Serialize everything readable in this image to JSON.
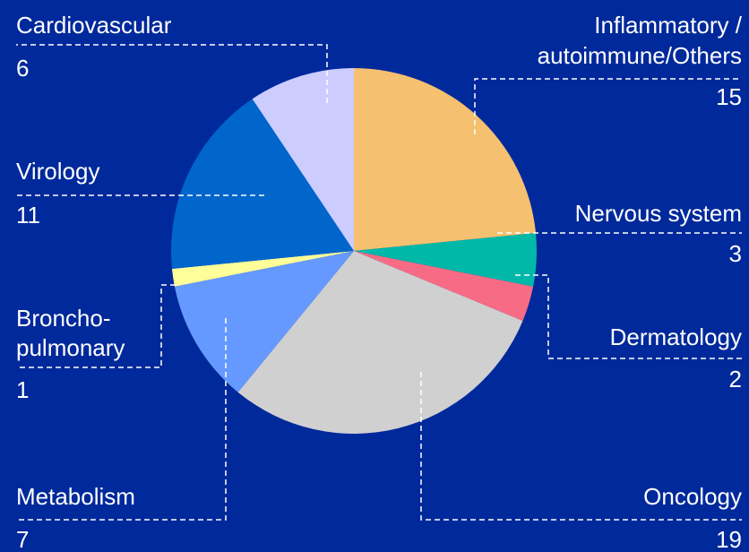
{
  "chart_data": {
    "type": "pie",
    "categories": [
      [
        "Inflammatory /",
        "autoimmune/Others"
      ],
      [
        "Nervous system"
      ],
      [
        "Dermatology"
      ],
      [
        "Oncology"
      ],
      [
        "Metabolism"
      ],
      [
        "Broncho-",
        "pulmonary"
      ],
      [
        "Virology"
      ],
      [
        "Cardiovascular"
      ]
    ],
    "values": [
      15,
      3,
      2,
      19,
      7,
      1,
      11,
      6
    ],
    "colors": [
      "#f5c06f",
      "#00b8a8",
      "#f76b84",
      "#d0d0d0",
      "#6699ff",
      "#ffff99",
      "#0066cc",
      "#ccccff"
    ]
  }
}
